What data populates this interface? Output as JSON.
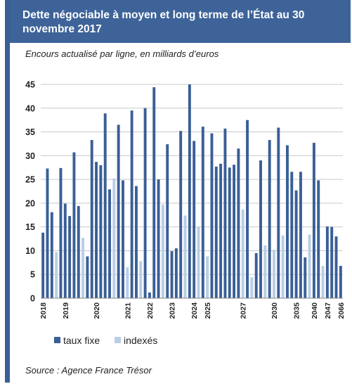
{
  "header": {
    "title": "Dette négociable à moyen et long terme de l’État au 30 novembre 2017",
    "subtitle": "Encours actualisé par ligne, en milliards d’euros",
    "source": "Source : Agence France Trésor"
  },
  "colors": {
    "header_bg": "#3d6399",
    "taux_fixe": "#3a5f96",
    "indexes": "#b9cde5"
  },
  "chart_data": {
    "type": "bar",
    "ylim": [
      0,
      45
    ],
    "yticks": [
      0,
      5,
      10,
      15,
      20,
      25,
      30,
      35,
      40,
      45
    ],
    "grid": true,
    "legend_position": "bottom-left",
    "series": [
      {
        "name": "taux fixe"
      },
      {
        "name": "indexés"
      }
    ],
    "bars": [
      {
        "s": 0,
        "v": 13.8
      },
      {
        "s": 0,
        "v": 27.3
      },
      {
        "s": 0,
        "v": 18.1
      },
      {
        "s": 1,
        "v": 9.7
      },
      {
        "s": 0,
        "v": 27.4
      },
      {
        "s": 0,
        "v": 19.9
      },
      {
        "s": 0,
        "v": 17.3
      },
      {
        "s": 0,
        "v": 30.7
      },
      {
        "s": 0,
        "v": 19.4
      },
      {
        "s": 1,
        "v": 12.7
      },
      {
        "s": 0,
        "v": 8.8
      },
      {
        "s": 0,
        "v": 33.3
      },
      {
        "s": 0,
        "v": 28.7
      },
      {
        "s": 0,
        "v": 28.0
      },
      {
        "s": 0,
        "v": 38.9
      },
      {
        "s": 0,
        "v": 22.9
      },
      {
        "s": 1,
        "v": 25.2
      },
      {
        "s": 0,
        "v": 36.5
      },
      {
        "s": 0,
        "v": 24.8
      },
      {
        "s": 1,
        "v": 6.5
      },
      {
        "s": 0,
        "v": 39.5
      },
      {
        "s": 0,
        "v": 23.6
      },
      {
        "s": 1,
        "v": 7.8
      },
      {
        "s": 0,
        "v": 40.0
      },
      {
        "s": 0,
        "v": 1.2
      },
      {
        "s": 0,
        "v": 44.4
      },
      {
        "s": 0,
        "v": 25.0
      },
      {
        "s": 1,
        "v": 19.7
      },
      {
        "s": 0,
        "v": 32.4
      },
      {
        "s": 0,
        "v": 9.9
      },
      {
        "s": 0,
        "v": 10.5
      },
      {
        "s": 0,
        "v": 35.2
      },
      {
        "s": 1,
        "v": 17.4
      },
      {
        "s": 0,
        "v": 45.0
      },
      {
        "s": 0,
        "v": 33.1
      },
      {
        "s": 1,
        "v": 15.1
      },
      {
        "s": 0,
        "v": 36.1
      },
      {
        "s": 1,
        "v": 8.8
      },
      {
        "s": 0,
        "v": 34.7
      },
      {
        "s": 0,
        "v": 27.7
      },
      {
        "s": 0,
        "v": 28.3
      },
      {
        "s": 0,
        "v": 35.7
      },
      {
        "s": 0,
        "v": 27.5
      },
      {
        "s": 0,
        "v": 28.1
      },
      {
        "s": 0,
        "v": 31.5
      },
      {
        "s": 1,
        "v": 18.7
      },
      {
        "s": 0,
        "v": 37.5
      },
      {
        "s": 1,
        "v": 4.4
      },
      {
        "s": 0,
        "v": 9.5
      },
      {
        "s": 0,
        "v": 29.0
      },
      {
        "s": 1,
        "v": 11.1
      },
      {
        "s": 0,
        "v": 33.3
      },
      {
        "s": 1,
        "v": 10.2
      },
      {
        "s": 0,
        "v": 35.9
      },
      {
        "s": 1,
        "v": 13.2
      },
      {
        "s": 0,
        "v": 32.2
      },
      {
        "s": 0,
        "v": 26.6
      },
      {
        "s": 0,
        "v": 22.7
      },
      {
        "s": 0,
        "v": 26.6
      },
      {
        "s": 0,
        "v": 8.6
      },
      {
        "s": 1,
        "v": 13.4
      },
      {
        "s": 0,
        "v": 32.7
      },
      {
        "s": 0,
        "v": 24.8
      },
      {
        "s": 1,
        "v": 6.8
      },
      {
        "s": 0,
        "v": 15.1
      },
      {
        "s": 0,
        "v": 15.0
      },
      {
        "s": 0,
        "v": 13.0
      },
      {
        "s": 0,
        "v": 6.8
      }
    ],
    "x_tick_labels": [
      {
        "label": "2018",
        "bar": 0
      },
      {
        "label": "2019",
        "bar": 5
      },
      {
        "label": "2020",
        "bar": 12
      },
      {
        "label": "2021",
        "bar": 19
      },
      {
        "label": "2022",
        "bar": 24
      },
      {
        "label": "2023",
        "bar": 29
      },
      {
        "label": "2024",
        "bar": 34
      },
      {
        "label": "2025",
        "bar": 37
      },
      {
        "label": "2027",
        "bar": 45
      },
      {
        "label": "2030",
        "bar": 52
      },
      {
        "label": "2035",
        "bar": 57
      },
      {
        "label": "2040",
        "bar": 61
      },
      {
        "label": "2047",
        "bar": 64
      },
      {
        "label": "2066",
        "bar": 67
      }
    ]
  }
}
